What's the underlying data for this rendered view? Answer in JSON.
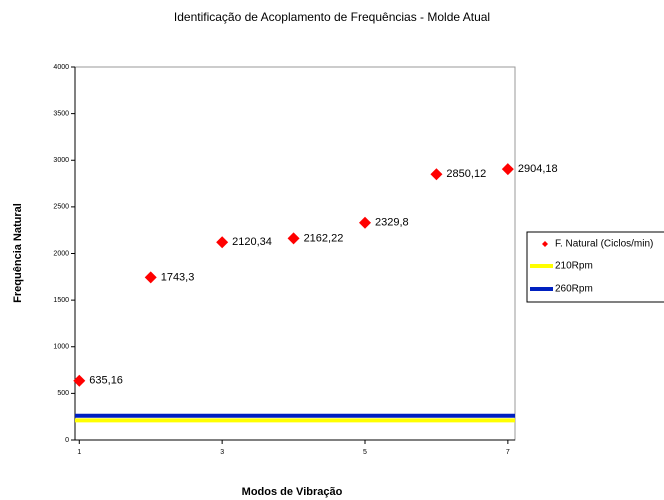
{
  "chart_data": {
    "type": "scatter",
    "title": "Identificação de Acoplamento de Frequências - Molde Atual",
    "x_label": "Modos de Vibração",
    "y_label": "Frequência Natural",
    "xlim": [
      0.94,
      7.1
    ],
    "xticks": [
      1,
      3,
      5,
      7
    ],
    "ylim": [
      0,
      4000
    ],
    "yticks": [
      0,
      500,
      1000,
      1500,
      2000,
      2500,
      3000,
      3500,
      4000
    ],
    "grid": false,
    "legend": "right",
    "series": [
      {
        "name": "F. Natural (Ciclos/min)",
        "color": "#ff0000",
        "x": [
          1,
          2,
          3,
          4,
          5,
          6,
          7
        ],
        "values": [
          635.16,
          1743.3,
          2120.34,
          2162.22,
          2329.8,
          2850.12,
          2904.18
        ],
        "value_labels": [
          "635,16",
          "1743,3",
          "2120,34",
          "2162,22",
          "2329,8",
          "2850,12",
          "2904,18"
        ]
      }
    ],
    "hlines": [
      {
        "name": "210Rpm",
        "color": "#ffff00",
        "value": 210
      },
      {
        "name": "260Rpm",
        "color": "#0020c0",
        "value": 260
      }
    ]
  }
}
